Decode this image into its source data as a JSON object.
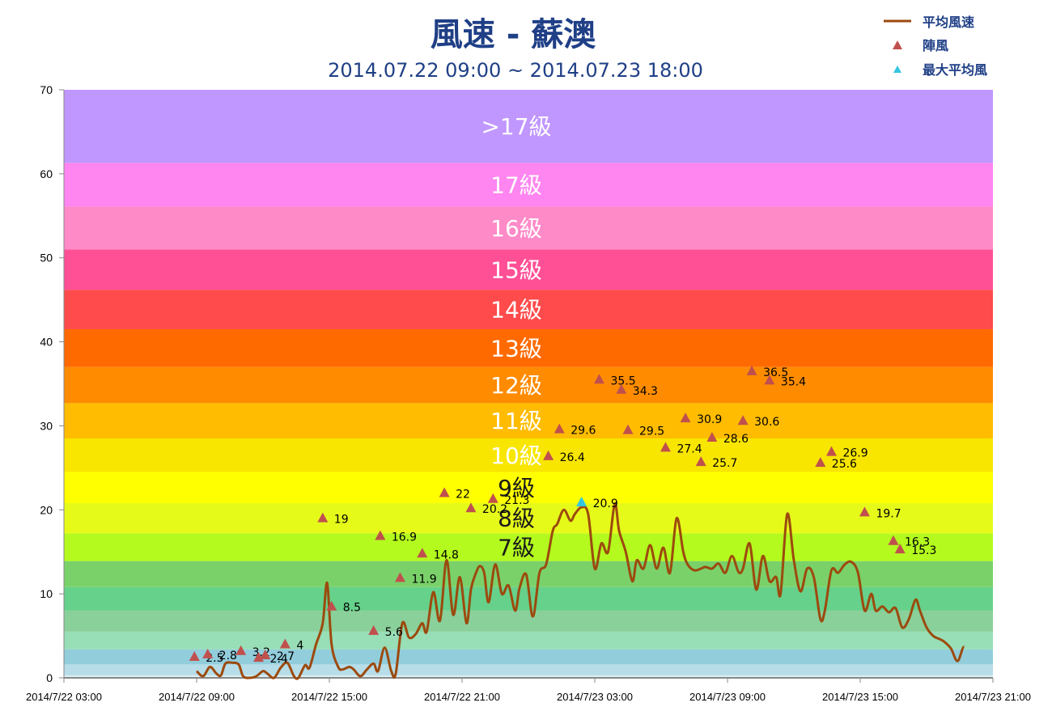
{
  "chart_data": {
    "type": "line",
    "title": "風速 - 蘇澳",
    "subtitle": "2014.07.22 09:00 ~ 2014.07.23 18:00",
    "xlabel": "",
    "ylabel": "",
    "ylim": [
      0,
      70
    ],
    "yticks": [
      0,
      10,
      20,
      30,
      40,
      50,
      60,
      70
    ],
    "xticks": [
      "2014/7/22 03:00",
      "2014/7/22 09:00",
      "2014/7/22 15:00",
      "2014/7/22 21:00",
      "2014/7/23 03:00",
      "2014/7/23 09:00",
      "2014/7/23 15:00",
      "2014/7/23 21:00"
    ],
    "xlim_hours": [
      0,
      42
    ],
    "legend": {
      "position": "top-right",
      "entries": [
        {
          "label": "平均風速",
          "marker": "line",
          "color": "#9c4a0e"
        },
        {
          "label": "陣風",
          "marker": "triangle",
          "color": "#c0504d"
        },
        {
          "label": "最大平均風",
          "marker": "triangle",
          "color": "#33c5e0"
        }
      ]
    },
    "bands": [
      {
        "from": 0,
        "to": 0.3,
        "color": "#daeef3",
        "label": ""
      },
      {
        "from": 0.3,
        "to": 1.6,
        "color": "#b7dde8",
        "label": ""
      },
      {
        "from": 1.6,
        "to": 3.4,
        "color": "#92cddc",
        "label": ""
      },
      {
        "from": 3.4,
        "to": 5.5,
        "color": "#98deb6",
        "label": ""
      },
      {
        "from": 5.5,
        "to": 8.0,
        "color": "#8ad09a",
        "label": ""
      },
      {
        "from": 8.0,
        "to": 10.8,
        "color": "#66d18a",
        "label": ""
      },
      {
        "from": 10.8,
        "to": 13.9,
        "color": "#7ad16a",
        "label": ""
      },
      {
        "from": 13.9,
        "to": 17.2,
        "color": "#b4fa1e",
        "label": "7級",
        "label_color": "#1a1a1a"
      },
      {
        "from": 17.2,
        "to": 20.8,
        "color": "#e6fa1a",
        "label": "8級",
        "label_color": "#1a1a1a"
      },
      {
        "from": 20.8,
        "to": 24.5,
        "color": "#ffff00",
        "label": "9級",
        "label_color": "#1a1a1a"
      },
      {
        "from": 24.5,
        "to": 28.5,
        "color": "#f8e600",
        "label": "10級",
        "label_color": "#ffffff"
      },
      {
        "from": 28.5,
        "to": 32.7,
        "color": "#ffbc00",
        "label": "11級",
        "label_color": "#ffffff"
      },
      {
        "from": 32.7,
        "to": 37.0,
        "color": "#ff8c00",
        "label": "12級",
        "label_color": "#ffffff"
      },
      {
        "from": 37.0,
        "to": 41.5,
        "color": "#ff6a00",
        "label": "13級",
        "label_color": "#ffffff"
      },
      {
        "from": 41.5,
        "to": 46.2,
        "color": "#ff4b4b",
        "label": "14級",
        "label_color": "#ffffff"
      },
      {
        "from": 46.2,
        "to": 51.0,
        "color": "#ff5096",
        "label": "15級",
        "label_color": "#ffffff"
      },
      {
        "from": 51.0,
        "to": 56.1,
        "color": "#ff8ac8",
        "label": "16級",
        "label_color": "#ffffff"
      },
      {
        "from": 56.1,
        "to": 61.3,
        "color": "#ff85f0",
        "label": "17級",
        "label_color": "#ffffff"
      },
      {
        "from": 61.3,
        "to": 70,
        "color": "#c096ff",
        "label": ">17級",
        "label_color": "#ffffff"
      }
    ],
    "series": [
      {
        "name": "平均風速",
        "type": "line",
        "color": "#9c4a0e",
        "x_hours": [
          6.0,
          6.3,
          6.6,
          6.9,
          7.1,
          7.3,
          7.6,
          7.9,
          8.1,
          8.4,
          8.7,
          9.0,
          9.2,
          9.5,
          9.8,
          10.1,
          10.4,
          10.6,
          10.9,
          11.1,
          11.4,
          11.7,
          11.9,
          12.1,
          12.4,
          12.6,
          12.9,
          13.1,
          13.4,
          13.7,
          14.0,
          14.2,
          14.5,
          14.8,
          15.0,
          15.3,
          15.6,
          15.9,
          16.2,
          16.4,
          16.7,
          17.0,
          17.3,
          17.6,
          17.9,
          18.2,
          18.4,
          18.6,
          18.8,
          19.0,
          19.2,
          19.5,
          19.8,
          20.1,
          20.4,
          20.6,
          20.9,
          21.2,
          21.5,
          21.8,
          22.1,
          22.3,
          22.6,
          22.9,
          23.1,
          23.4,
          23.7,
          24.0,
          24.3,
          24.6,
          24.9,
          25.1,
          25.4,
          25.7,
          25.9,
          26.2,
          26.5,
          26.8,
          27.1,
          27.4,
          27.7,
          28.0,
          28.2,
          28.5,
          28.8,
          29.0,
          29.3,
          29.6,
          29.9,
          30.2,
          30.5,
          30.7,
          31.0,
          31.3,
          31.6,
          31.9,
          32.2,
          32.4,
          32.7,
          33.0,
          33.3,
          33.6,
          33.9,
          34.2,
          34.4,
          34.7,
          35.0,
          35.3,
          35.6,
          35.9,
          36.2,
          36.5,
          36.7,
          37.0,
          37.3,
          37.6,
          37.9,
          38.2,
          38.5,
          38.7,
          39.0,
          39.3,
          39.6,
          39.8,
          40.1,
          40.4,
          40.7,
          41.0,
          41.3,
          41.5
        ],
        "values": [
          0.8,
          0.2,
          1.3,
          0.5,
          0.3,
          1.7,
          1.8,
          1.6,
          0.2,
          0.0,
          0.2,
          0.8,
          0.5,
          0.0,
          1.2,
          1.8,
          0.2,
          0.0,
          1.5,
          1.2,
          4.0,
          6.5,
          11.3,
          4.0,
          1.3,
          1.0,
          1.3,
          1.0,
          0.2,
          1.0,
          1.7,
          0.8,
          3.6,
          0.8,
          0.5,
          6.5,
          4.8,
          5.2,
          6.5,
          5.5,
          10.2,
          6.8,
          14.0,
          7.5,
          12.0,
          6.5,
          10.5,
          12.3,
          13.3,
          12.5,
          9.0,
          13.5,
          10.0,
          11.0,
          8.0,
          10.7,
          12.3,
          7.3,
          12.5,
          13.5,
          17.5,
          18.3,
          20.0,
          18.7,
          19.5,
          20.3,
          19.5,
          13.0,
          16.0,
          15.0,
          20.7,
          17.5,
          15.0,
          11.5,
          14.0,
          13.0,
          15.8,
          13.0,
          15.5,
          12.5,
          19.0,
          15.0,
          13.5,
          12.8,
          13.0,
          13.2,
          13.0,
          13.6,
          12.5,
          14.5,
          12.6,
          13.0,
          16.0,
          10.5,
          14.5,
          11.5,
          12.0,
          10.0,
          19.5,
          14.0,
          10.3,
          13.0,
          12.0,
          7.0,
          8.0,
          12.8,
          12.5,
          13.5,
          13.8,
          12.5,
          8.0,
          10.0,
          8.0,
          8.5,
          7.8,
          8.3,
          6.0,
          7.0,
          9.3,
          8.0,
          6.0,
          5.0,
          4.6,
          4.3,
          3.5,
          2.0,
          3.7,
          1.9
        ]
      },
      {
        "name": "陣風",
        "type": "scatter",
        "marker": "triangle",
        "color": "#c0504d",
        "points": [
          {
            "x_hours": 5.9,
            "y": 2.5,
            "label": "2.5"
          },
          {
            "x_hours": 6.5,
            "y": 2.8,
            "label": "2.8"
          },
          {
            "x_hours": 8.0,
            "y": 3.2,
            "label": "3.2"
          },
          {
            "x_hours": 8.8,
            "y": 2.4,
            "label": "2.4"
          },
          {
            "x_hours": 9.1,
            "y": 2.7,
            "label": "2.7"
          },
          {
            "x_hours": 10.0,
            "y": 4.0,
            "label": "4"
          },
          {
            "x_hours": 11.7,
            "y": 19.0,
            "label": "19"
          },
          {
            "x_hours": 12.1,
            "y": 8.5,
            "label": "8.5"
          },
          {
            "x_hours": 14.0,
            "y": 5.6,
            "label": "5.6"
          },
          {
            "x_hours": 14.3,
            "y": 16.9,
            "label": "16.9"
          },
          {
            "x_hours": 15.2,
            "y": 11.9,
            "label": "11.9"
          },
          {
            "x_hours": 16.2,
            "y": 14.8,
            "label": "14.8"
          },
          {
            "x_hours": 17.2,
            "y": 22.0,
            "label": "22"
          },
          {
            "x_hours": 18.4,
            "y": 20.2,
            "label": "20.2"
          },
          {
            "x_hours": 19.4,
            "y": 21.3,
            "label": "21.3"
          },
          {
            "x_hours": 21.9,
            "y": 26.4,
            "label": "26.4"
          },
          {
            "x_hours": 22.4,
            "y": 29.6,
            "label": "29.6"
          },
          {
            "x_hours": 24.2,
            "y": 35.5,
            "label": "35.5"
          },
          {
            "x_hours": 25.2,
            "y": 34.3,
            "label": "34.3"
          },
          {
            "x_hours": 25.5,
            "y": 29.5,
            "label": "29.5"
          },
          {
            "x_hours": 27.2,
            "y": 27.4,
            "label": "27.4"
          },
          {
            "x_hours": 28.1,
            "y": 30.9,
            "label": "30.9"
          },
          {
            "x_hours": 28.8,
            "y": 25.7,
            "label": "25.7"
          },
          {
            "x_hours": 29.3,
            "y": 28.6,
            "label": "28.6"
          },
          {
            "x_hours": 30.7,
            "y": 30.6,
            "label": "30.6"
          },
          {
            "x_hours": 31.1,
            "y": 36.5,
            "label": "36.5"
          },
          {
            "x_hours": 31.9,
            "y": 35.4,
            "label": "35.4"
          },
          {
            "x_hours": 34.2,
            "y": 25.6,
            "label": "25.6"
          },
          {
            "x_hours": 34.7,
            "y": 26.9,
            "label": "26.9"
          },
          {
            "x_hours": 36.2,
            "y": 19.7,
            "label": "19.7"
          },
          {
            "x_hours": 37.5,
            "y": 16.3,
            "label": "16.3"
          },
          {
            "x_hours": 37.8,
            "y": 15.3,
            "label": "15.3"
          }
        ]
      },
      {
        "name": "最大平均風",
        "type": "scatter",
        "marker": "triangle",
        "color": "#33c5e0",
        "points": [
          {
            "x_hours": 23.4,
            "y": 20.9,
            "label": "20.9"
          }
        ]
      }
    ]
  }
}
